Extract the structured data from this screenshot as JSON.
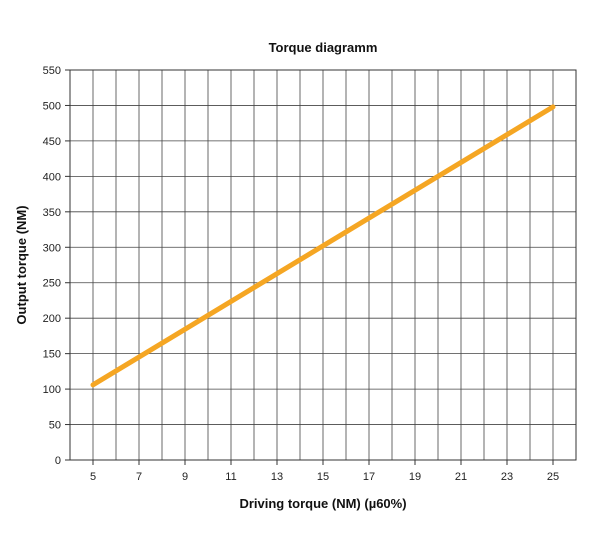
{
  "chart_data": {
    "type": "line",
    "title": "Torque diagramm",
    "xlabel": "Driving torque (NM) (µ60%)",
    "ylabel": "Output torque  (NM)",
    "xlim": [
      4,
      26
    ],
    "ylim": [
      0,
      550
    ],
    "x_ticks": [
      5,
      7,
      9,
      11,
      13,
      15,
      17,
      19,
      21,
      23,
      25
    ],
    "y_ticks": [
      0,
      50,
      100,
      150,
      200,
      250,
      300,
      350,
      400,
      450,
      500,
      550
    ],
    "grid": true,
    "series": [
      {
        "x": [
          5,
          25
        ],
        "y": [
          106,
          498
        ],
        "color": "#F5A623"
      }
    ]
  }
}
